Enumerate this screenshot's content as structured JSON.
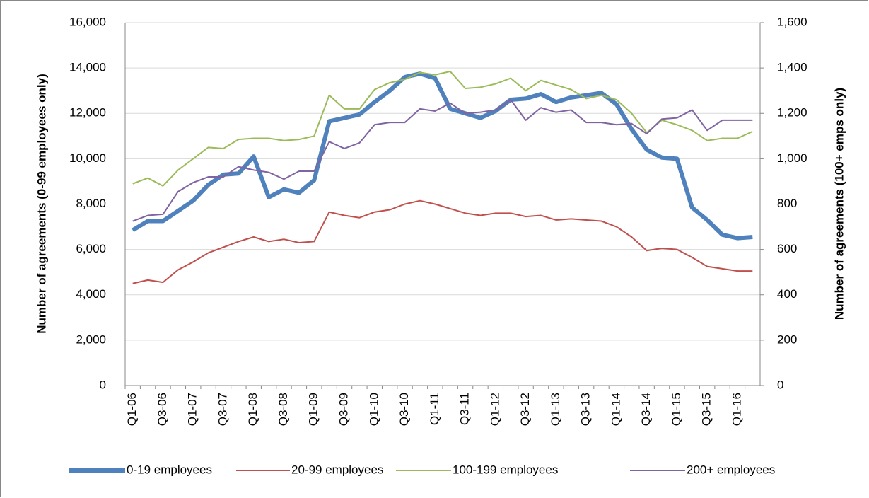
{
  "chart_data": {
    "type": "line",
    "y_label": "Number of agreements (0-99 employees only)",
    "y2_label": "Number of agreements (100+ emps only)",
    "categories": [
      "Q1-06",
      null,
      "Q3-06",
      null,
      "Q1-07",
      null,
      "Q3-07",
      null,
      "Q1-08",
      null,
      "Q3-08",
      null,
      "Q1-09",
      null,
      "Q3-09",
      null,
      "Q1-10",
      null,
      "Q3-10",
      null,
      "Q1-11",
      null,
      "Q3-11",
      null,
      "Q1-12",
      null,
      "Q3-12",
      null,
      "Q1-13",
      null,
      "Q3-13",
      null,
      "Q1-14",
      null,
      "Q3-14",
      null,
      "Q1-15",
      null,
      "Q3-15",
      null,
      "Q1-16",
      null
    ],
    "series": [
      {
        "name": "0-19 employees",
        "color": "#4f81bd",
        "values": [
          6850,
          7250,
          7250,
          7700,
          8150,
          8850,
          9300,
          9350,
          10100,
          8300,
          8650,
          8500,
          9050,
          11650,
          11800,
          11950,
          12500,
          13000,
          13600,
          13750,
          13550,
          12200,
          12000,
          11800,
          12100,
          12600,
          12650,
          12850,
          12500,
          12700,
          12800,
          12900,
          12400,
          11300,
          10400,
          10050,
          10000,
          7850,
          7300,
          6650,
          6500,
          6550
        ]
      },
      {
        "name": "20-99 employees",
        "color": "#c0504d",
        "values": [
          4500,
          4650,
          4550,
          5100,
          5450,
          5850,
          6100,
          6350,
          6550,
          6350,
          6450,
          6300,
          6350,
          7650,
          7500,
          7400,
          7650,
          7750,
          8000,
          8150,
          8000,
          7800,
          7600,
          7500,
          7600,
          7600,
          7450,
          7500,
          7300,
          7350,
          7300,
          7250,
          7000,
          6550,
          5950,
          6050,
          6000,
          5650,
          5250,
          5150,
          5050,
          5050
        ]
      },
      {
        "name": "100-199 employees",
        "color": "#9bbb59",
        "axis": "y2",
        "values": [
          890,
          915,
          880,
          950,
          1000,
          1050,
          1045,
          1085,
          1090,
          1090,
          1080,
          1085,
          1100,
          1280,
          1220,
          1220,
          1305,
          1335,
          1350,
          1380,
          1370,
          1385,
          1310,
          1315,
          1330,
          1355,
          1300,
          1345,
          1325,
          1305,
          1265,
          1280,
          1260,
          1200,
          1115,
          1170,
          1150,
          1125,
          1080,
          1090,
          1090,
          1120
        ]
      },
      {
        "name": "200+ employees",
        "color": "#8064a2",
        "axis": "y2",
        "values": [
          725,
          750,
          755,
          855,
          895,
          920,
          920,
          965,
          950,
          940,
          910,
          945,
          945,
          1075,
          1045,
          1070,
          1150,
          1160,
          1160,
          1220,
          1210,
          1245,
          1200,
          1205,
          1215,
          1260,
          1170,
          1225,
          1205,
          1215,
          1160,
          1160,
          1150,
          1155,
          1110,
          1175,
          1180,
          1215,
          1125,
          1170,
          1170,
          1170
        ]
      }
    ],
    "ylim": [
      0,
      16000
    ],
    "yticks": [
      0,
      {
        "value": 2000,
        "label": "2,000"
      },
      {
        "value": 4000,
        "label": "4,000"
      },
      {
        "value": 6000,
        "label": "6,000"
      },
      {
        "value": 8000,
        "label": "8,000"
      },
      {
        "value": 10000,
        "label": "10,000"
      },
      {
        "value": 12000,
        "label": "12,000"
      },
      {
        "value": 14000,
        "label": "14,000"
      },
      {
        "value": 16000,
        "label": "16,000"
      }
    ],
    "y2lim": [
      0,
      1600
    ],
    "y2ticks": [
      0,
      200,
      400,
      600,
      800,
      {
        "value": 1000,
        "label": "1,000"
      },
      {
        "value": 1200,
        "label": "1,200"
      },
      {
        "value": 1400,
        "label": "1,400"
      },
      {
        "value": 1600,
        "label": "1,600"
      }
    ],
    "grid": true,
    "legend": "bottom"
  }
}
